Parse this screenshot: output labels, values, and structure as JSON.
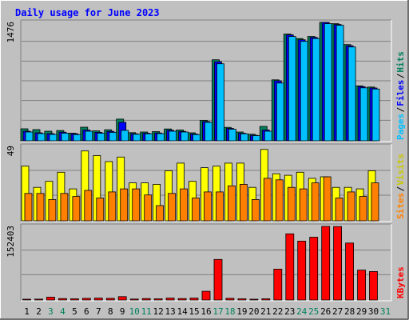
{
  "chart_data": {
    "type": "bar",
    "title": "Daily usage for June 2023",
    "categories": [
      "1",
      "2",
      "3",
      "4",
      "5",
      "6",
      "7",
      "8",
      "9",
      "10",
      "11",
      "12",
      "13",
      "14",
      "15",
      "16",
      "17",
      "18",
      "19",
      "20",
      "21",
      "22",
      "23",
      "24",
      "25",
      "26",
      "27",
      "28",
      "29",
      "30",
      "31"
    ],
    "weekend_days": [
      "3",
      "4",
      "10",
      "11",
      "17",
      "18",
      "24",
      "25",
      "31"
    ],
    "panels": [
      {
        "name": "hits_files_pages",
        "ymax_label": "1476",
        "ymax": 1476,
        "series": [
          {
            "name": "Hits",
            "color": "#00805c",
            "values": [
              150,
              140,
              120,
              128,
              95,
              170,
              124,
              138,
              270,
              102,
              110,
              115,
              148,
              135,
              100,
              254,
              1010,
              168,
              110,
              82,
              180,
              760,
              1330,
              1275,
              1300,
              1476,
              1460,
              1200,
              685,
              670,
              0
            ]
          },
          {
            "name": "Files",
            "color": "#0000ff",
            "values": [
              120,
              100,
              90,
              108,
              88,
              135,
              106,
              118,
              230,
              88,
              95,
              98,
              132,
              118,
              85,
              240,
              985,
              155,
              95,
              70,
              135,
              748,
              1320,
              1260,
              1290,
              1476,
              1450,
              1185,
              675,
              658,
              0
            ]
          },
          {
            "name": "Pages",
            "color": "#00c0ff",
            "values": [
              110,
              90,
              80,
              95,
              78,
              120,
              95,
              105,
              130,
              82,
              88,
              90,
              120,
              110,
              78,
              230,
              960,
              145,
              88,
              65,
              120,
              720,
              1300,
              1240,
              1275,
              1460,
              1440,
              1170,
              660,
              645,
              0
            ]
          }
        ]
      },
      {
        "name": "visits_sites",
        "ymax_label": "49",
        "ymax": 49,
        "series": [
          {
            "name": "Visits",
            "color": "#ffff00",
            "values": [
              36,
              22,
              26,
              32,
              21,
              46,
              43,
              39,
              42,
              25,
              25,
              24,
              33,
              38,
              26,
              35,
              36,
              38,
              38,
              22,
              47,
              31,
              30,
              32,
              28,
              29,
              22,
              22,
              21,
              33,
              0
            ]
          },
          {
            "name": "Sites",
            "color": "#ff8000",
            "values": [
              18,
              18,
              14,
              18,
              16,
              20,
              15,
              19,
              21,
              21,
              17,
              10,
              18,
              21,
              15,
              19,
              19,
              23,
              24,
              14,
              28,
              27,
              22,
              21,
              25,
              29,
              15,
              19,
              16,
              25,
              0
            ]
          }
        ]
      },
      {
        "name": "kbytes",
        "ymax_label": "152403",
        "ymax": 152403,
        "series": [
          {
            "name": "KBytes",
            "color": "#ff0000",
            "values": [
              1500,
              1800,
              6000,
              3000,
              2500,
              3500,
              4000,
              3500,
              7000,
              2000,
              3000,
              2500,
              4000,
              3000,
              4000,
              18000,
              84000,
              3500,
              2500,
              1500,
              2500,
              64000,
              137000,
              122000,
              130000,
              152403,
              152000,
              118000,
              62000,
              59000,
              0
            ]
          }
        ]
      }
    ],
    "legend": [
      {
        "text": "Pages",
        "color": "#00c0ff",
        "panel": 0
      },
      {
        "text": "/",
        "color": "#000000",
        "panel": 0
      },
      {
        "text": "Files",
        "color": "#0000ff",
        "panel": 0
      },
      {
        "text": "/",
        "color": "#000000",
        "panel": 0
      },
      {
        "text": "Hits",
        "color": "#00805c",
        "panel": 0
      },
      {
        "text": "Sites",
        "color": "#ff8000",
        "panel": 1
      },
      {
        "text": "/",
        "color": "#000000",
        "panel": 1
      },
      {
        "text": "Visits",
        "color": "#c8c800",
        "panel": 1
      },
      {
        "text": "KBytes",
        "color": "#ff0000",
        "panel": 2
      }
    ],
    "colors": {
      "background": "#c0c0c0",
      "plot_background": "#c0c0c0",
      "title": "#0000ff",
      "weekday_label": "#000000",
      "weekend_label": "#00805c",
      "gridline": "#808080"
    },
    "grid": true
  }
}
